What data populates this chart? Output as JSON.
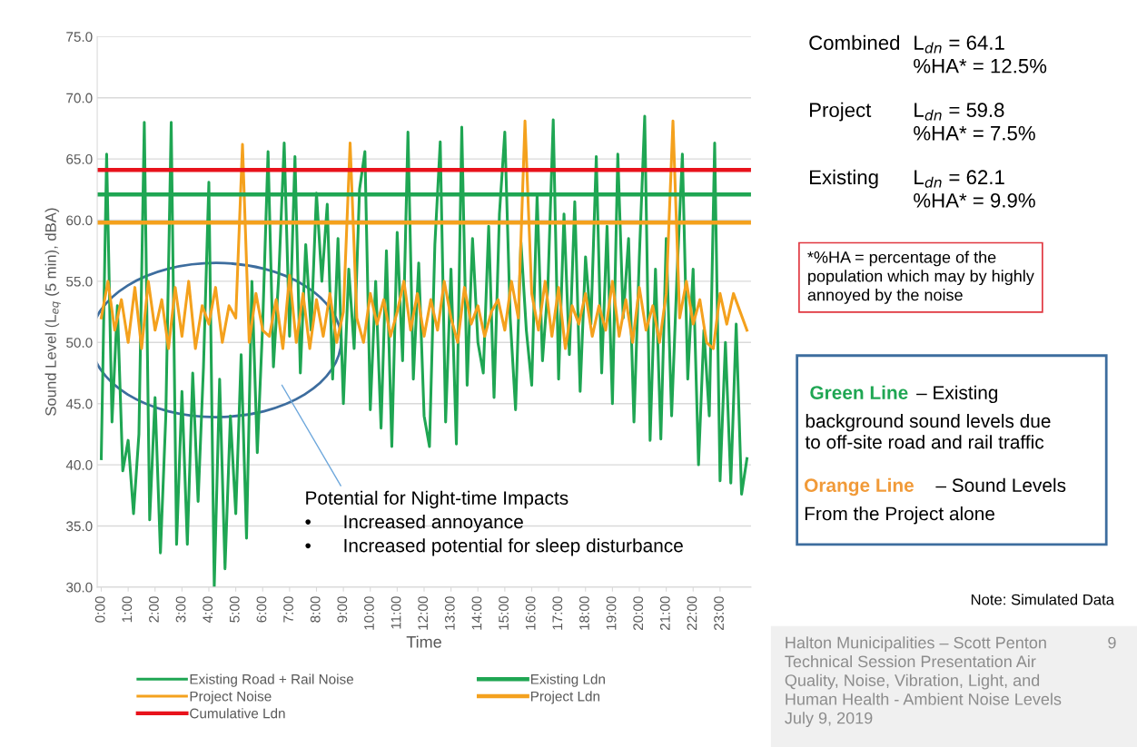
{
  "chart_data": {
    "type": "line",
    "xlabel": "Time",
    "ylabel": "Sound Level (L$_{eq}$ (5 min), dBA)",
    "xlim": [
      -0.15,
      24.15
    ],
    "ylim": [
      30,
      75
    ],
    "xticks": [
      {
        "value": 0,
        "label": "0:00"
      },
      {
        "value": 1,
        "label": "1:00"
      },
      {
        "value": 2,
        "label": "2:00"
      },
      {
        "value": 3,
        "label": "3:00"
      },
      {
        "value": 4,
        "label": "4:00"
      },
      {
        "value": 5,
        "label": "5:00"
      },
      {
        "value": 6,
        "label": "6:00"
      },
      {
        "value": 7,
        "label": "7:00"
      },
      {
        "value": 8,
        "label": "8:00"
      },
      {
        "value": 9,
        "label": "9:00"
      },
      {
        "value": 10,
        "label": "10:00"
      },
      {
        "value": 11,
        "label": "11:00"
      },
      {
        "value": 12,
        "label": "12:00"
      },
      {
        "value": 13,
        "label": "13:00"
      },
      {
        "value": 14,
        "label": "14:00"
      },
      {
        "value": 15,
        "label": "15:00"
      },
      {
        "value": 16,
        "label": "16:00"
      },
      {
        "value": 17,
        "label": "17:00"
      },
      {
        "value": 18,
        "label": "18:00"
      },
      {
        "value": 19,
        "label": "19:00"
      },
      {
        "value": 20,
        "label": "20:00"
      },
      {
        "value": 21,
        "label": "21:00"
      },
      {
        "value": 22,
        "label": "22:00"
      },
      {
        "value": 23,
        "label": "23:00"
      }
    ],
    "yticks": [
      {
        "value": 30,
        "label": "30.0"
      },
      {
        "value": 35,
        "label": "35.0"
      },
      {
        "value": 40,
        "label": "40.0"
      },
      {
        "value": 45,
        "label": "45.0"
      },
      {
        "value": 50,
        "label": "50.0"
      },
      {
        "value": 55,
        "label": "55.0"
      },
      {
        "value": 60,
        "label": "60.0"
      },
      {
        "value": 65,
        "label": "65.0"
      },
      {
        "value": 70,
        "label": "70.0"
      },
      {
        "value": 75,
        "label": "75.0"
      }
    ],
    "grid": "y",
    "legend": "bottom",
    "marker": "none",
    "line_style": "solid",
    "series": [
      {
        "name": "Existing Road + Rail Noise",
        "color": "#1fa653",
        "x": [
          0,
          0.2,
          0.4,
          0.6,
          0.8,
          1,
          1.2,
          1.4,
          1.6,
          1.8,
          2,
          2.2,
          2.4,
          2.6,
          2.8,
          3,
          3.2,
          3.4,
          3.6,
          3.8,
          4,
          4.2,
          4.4,
          4.6,
          4.8,
          5,
          5.2,
          5.4,
          5.6,
          5.8,
          6,
          6.2,
          6.4,
          6.6,
          6.8,
          7,
          7.2,
          7.4,
          7.6,
          7.8,
          8,
          8.2,
          8.4,
          8.6,
          8.8,
          9,
          9.2,
          9.4,
          9.6,
          9.8,
          10,
          10.2,
          10.4,
          10.6,
          10.8,
          11,
          11.2,
          11.4,
          11.6,
          11.8,
          12,
          12.2,
          12.4,
          12.6,
          12.8,
          13,
          13.2,
          13.4,
          13.6,
          13.8,
          14,
          14.2,
          14.4,
          14.6,
          14.8,
          15,
          15.2,
          15.4,
          15.6,
          15.8,
          16,
          16.2,
          16.4,
          16.6,
          16.8,
          17,
          17.2,
          17.4,
          17.6,
          17.8,
          18,
          18.2,
          18.4,
          18.6,
          18.8,
          19,
          19.2,
          19.4,
          19.6,
          19.8,
          20,
          20.2,
          20.4,
          20.6,
          20.8,
          21,
          21.2,
          21.4,
          21.6,
          21.8,
          22,
          22.2,
          22.4,
          22.6,
          22.8,
          23,
          23.2,
          23.4,
          23.6,
          23.8,
          24
        ],
        "values": [
          40.5,
          65.4,
          43.5,
          53,
          39.5,
          42,
          36,
          42.5,
          68,
          35.5,
          45.5,
          32.8,
          44,
          68,
          33.5,
          46,
          33.5,
          47.5,
          37,
          48,
          63.1,
          30,
          47,
          31.5,
          44,
          36,
          49,
          34,
          55,
          41,
          51.5,
          65.6,
          48,
          55.5,
          66.3,
          50.5,
          65.2,
          47.5,
          58,
          51,
          62.2,
          55,
          61.3,
          47,
          58.5,
          45,
          56,
          49.5,
          62.5,
          65.6,
          44.5,
          55,
          43,
          57.5,
          41.5,
          59,
          48.5,
          67.2,
          47,
          56.5,
          44,
          41.5,
          58,
          66.4,
          43.5,
          56,
          41.7,
          67.6,
          46.5,
          58.5,
          50,
          47.5,
          59.5,
          45.5,
          60.5,
          67.2,
          52,
          44.5,
          58.2,
          51,
          46.5,
          62,
          48.5,
          54.5,
          68.2,
          47,
          60.5,
          49,
          61.5,
          46,
          57,
          51.5,
          65.2,
          47.5,
          59.5,
          45,
          65.4,
          52,
          58.5,
          43.5,
          57,
          68.5,
          42,
          56,
          42.1,
          58.5,
          44,
          55.5,
          65.4,
          47,
          56,
          40,
          51,
          44,
          66.3,
          38.7,
          50,
          38.5,
          51.5,
          37.6,
          40.5
        ]
      },
      {
        "name": "Project Noise",
        "color": "#f4a11d",
        "x": [
          0,
          0.25,
          0.5,
          0.75,
          1,
          1.25,
          1.5,
          1.75,
          2,
          2.25,
          2.5,
          2.75,
          3,
          3.25,
          3.5,
          3.75,
          4,
          4.25,
          4.5,
          4.75,
          5,
          5.25,
          5.5,
          5.75,
          6,
          6.25,
          6.5,
          6.75,
          7,
          7.25,
          7.5,
          7.75,
          8,
          8.25,
          8.5,
          8.75,
          9,
          9.25,
          9.5,
          9.75,
          10,
          10.25,
          10.5,
          10.75,
          11,
          11.25,
          11.5,
          11.75,
          12,
          12.25,
          12.5,
          12.75,
          13,
          13.25,
          13.5,
          13.75,
          14,
          14.25,
          14.5,
          14.75,
          15,
          15.25,
          15.5,
          15.75,
          16,
          16.25,
          16.5,
          16.75,
          17,
          17.25,
          17.5,
          17.75,
          18,
          18.25,
          18.5,
          18.75,
          19,
          19.25,
          19.5,
          19.75,
          20,
          20.25,
          20.5,
          20.75,
          21,
          21.25,
          21.5,
          21.75,
          22,
          22.25,
          22.5,
          22.75,
          23,
          23.25,
          23.5,
          23.75,
          24
        ],
        "values": [
          52,
          55,
          51,
          53.5,
          50,
          54.5,
          49.5,
          55,
          51,
          53.5,
          49.5,
          54.5,
          50.5,
          55,
          49.5,
          53,
          51.5,
          54.5,
          50,
          53,
          52,
          66.2,
          50,
          54,
          51,
          50.5,
          53.5,
          49.5,
          55.5,
          50,
          54,
          49.5,
          53.5,
          50.5,
          54,
          50,
          52.5,
          66.3,
          52,
          50,
          54,
          51.5,
          53.5,
          50.5,
          52.5,
          55,
          51,
          54,
          50.5,
          53.5,
          51,
          55,
          52,
          50,
          54.5,
          51.5,
          53,
          50.5,
          52.5,
          53.5,
          51,
          55,
          52,
          68.1,
          54,
          51,
          55,
          50.5,
          54.5,
          49.5,
          53,
          51.5,
          54,
          50.5,
          53,
          51,
          55,
          50.5,
          53.5,
          50,
          54.5,
          51,
          53,
          50,
          54,
          68.1,
          52,
          55,
          51.5,
          53.5,
          50,
          49.5,
          54,
          51.5,
          54,
          52.5,
          51
        ]
      },
      {
        "name": "Cumulative Ldn",
        "color": "#e8121b",
        "x": [
          -0.15,
          24.15
        ],
        "values": [
          64.1,
          64.1
        ]
      },
      {
        "name": "Existing Ldn",
        "color": "#1fa653",
        "x": [
          -0.15,
          24.15
        ],
        "values": [
          62.1,
          62.1
        ]
      },
      {
        "name": "Project Ldn",
        "color": "#f4a11d",
        "x": [
          -0.15,
          24.15
        ],
        "values": [
          59.8,
          59.8
        ]
      }
    ],
    "annotations": [
      "Potential for Night-time Impacts\n•      Increased annoyance\n•      Increased potential for sleep disturbance",
      "Combined",
      "L$_{dn}$ = 64.1\n%HA* = 12.5%",
      "Project",
      "L$_{dn}$ = 59.8\n%HA* = 7.5%",
      "Existing",
      "L$_{dn}$ = 62.1\n%HA* = 9.9%",
      "*%HA = percentage of the\npopulation which may by highly\nannoyed by the noise",
      "Green Line",
      "– Existing",
      "background sound levels due\nto off-site road and rail traffic",
      "Orange Line",
      "– Sound Levels",
      "From the Project alone",
      "Note: Simulated Data",
      "Halton Municipalities – Scott Penton\nTechnical Session Presentation Air\nQuality, Noise, Vibration, Light, and\nHuman Health - Ambient Noise Levels\nJuly 9, 2019",
      "9"
    ]
  }
}
